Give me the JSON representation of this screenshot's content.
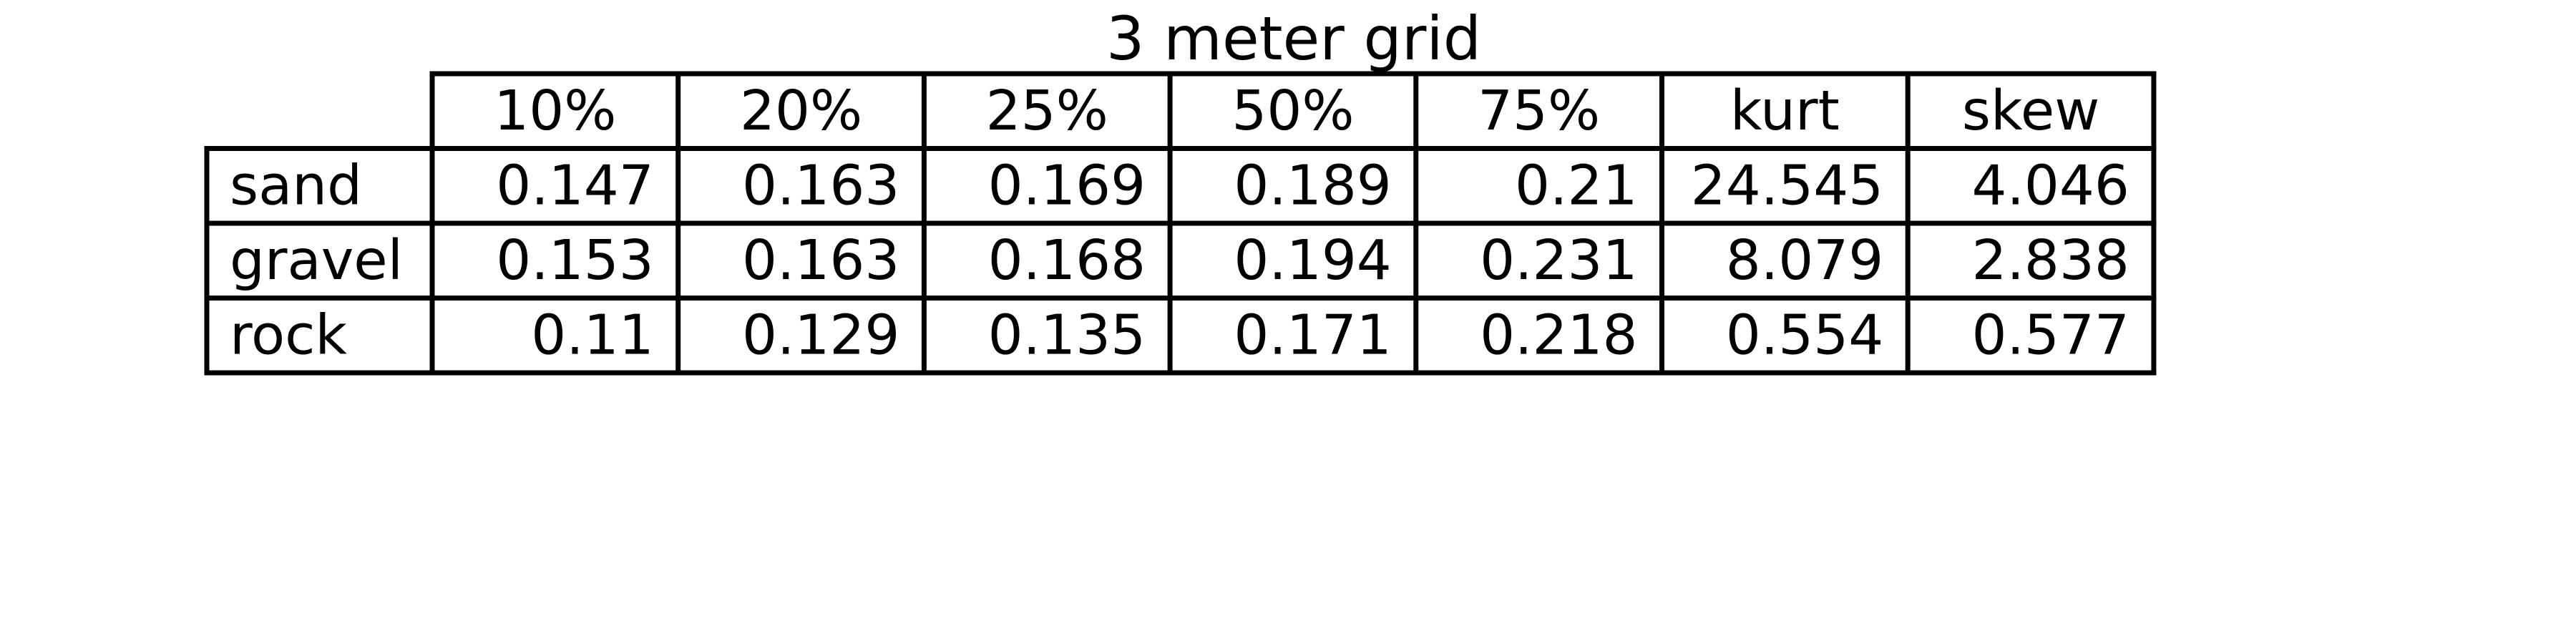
{
  "chart_data": {
    "type": "table",
    "title": "3 meter grid",
    "columns": [
      "10%",
      "20%",
      "25%",
      "50%",
      "75%",
      "kurt",
      "skew"
    ],
    "rows": [
      {
        "label": "sand",
        "values": [
          "0.147",
          "0.163",
          "0.169",
          "0.189",
          "0.21",
          "24.545",
          "4.046"
        ]
      },
      {
        "label": "gravel",
        "values": [
          "0.153",
          "0.163",
          "0.168",
          "0.194",
          "0.231",
          "8.079",
          "2.838"
        ]
      },
      {
        "label": "rock",
        "values": [
          "0.11",
          "0.129",
          "0.135",
          "0.171",
          "0.218",
          "0.554",
          "0.577"
        ]
      }
    ]
  }
}
